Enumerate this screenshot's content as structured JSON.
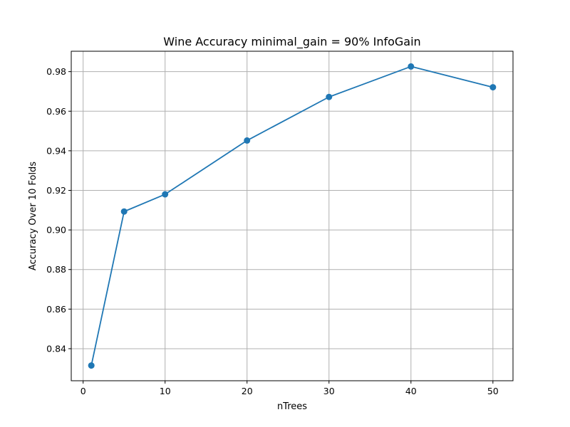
{
  "chart_data": {
    "type": "line",
    "title": "Wine Accuracy minimal_gain = 90% InfoGain",
    "xlabel": "nTrees",
    "ylabel": "Accuracy Over 10 Folds",
    "x": [
      1,
      5,
      10,
      20,
      30,
      40,
      50
    ],
    "series": [
      {
        "values": [
          0.8315,
          0.9093,
          0.918,
          0.9452,
          0.9672,
          0.9826,
          0.9721
        ]
      }
    ],
    "xlim": [
      -1.45,
      52.45
    ],
    "ylim": [
      0.8238,
      0.9903
    ],
    "xticks": [
      0,
      10,
      20,
      30,
      40,
      50
    ],
    "xtick_labels": [
      "0",
      "10",
      "20",
      "30",
      "40",
      "50"
    ],
    "yticks": [
      0.84,
      0.86,
      0.88,
      0.9,
      0.92,
      0.94,
      0.96,
      0.98
    ],
    "ytick_labels": [
      "0.84",
      "0.86",
      "0.88",
      "0.90",
      "0.92",
      "0.94",
      "0.96",
      "0.98"
    ],
    "grid": true,
    "marker": "circle",
    "color": "#1f77b4"
  }
}
